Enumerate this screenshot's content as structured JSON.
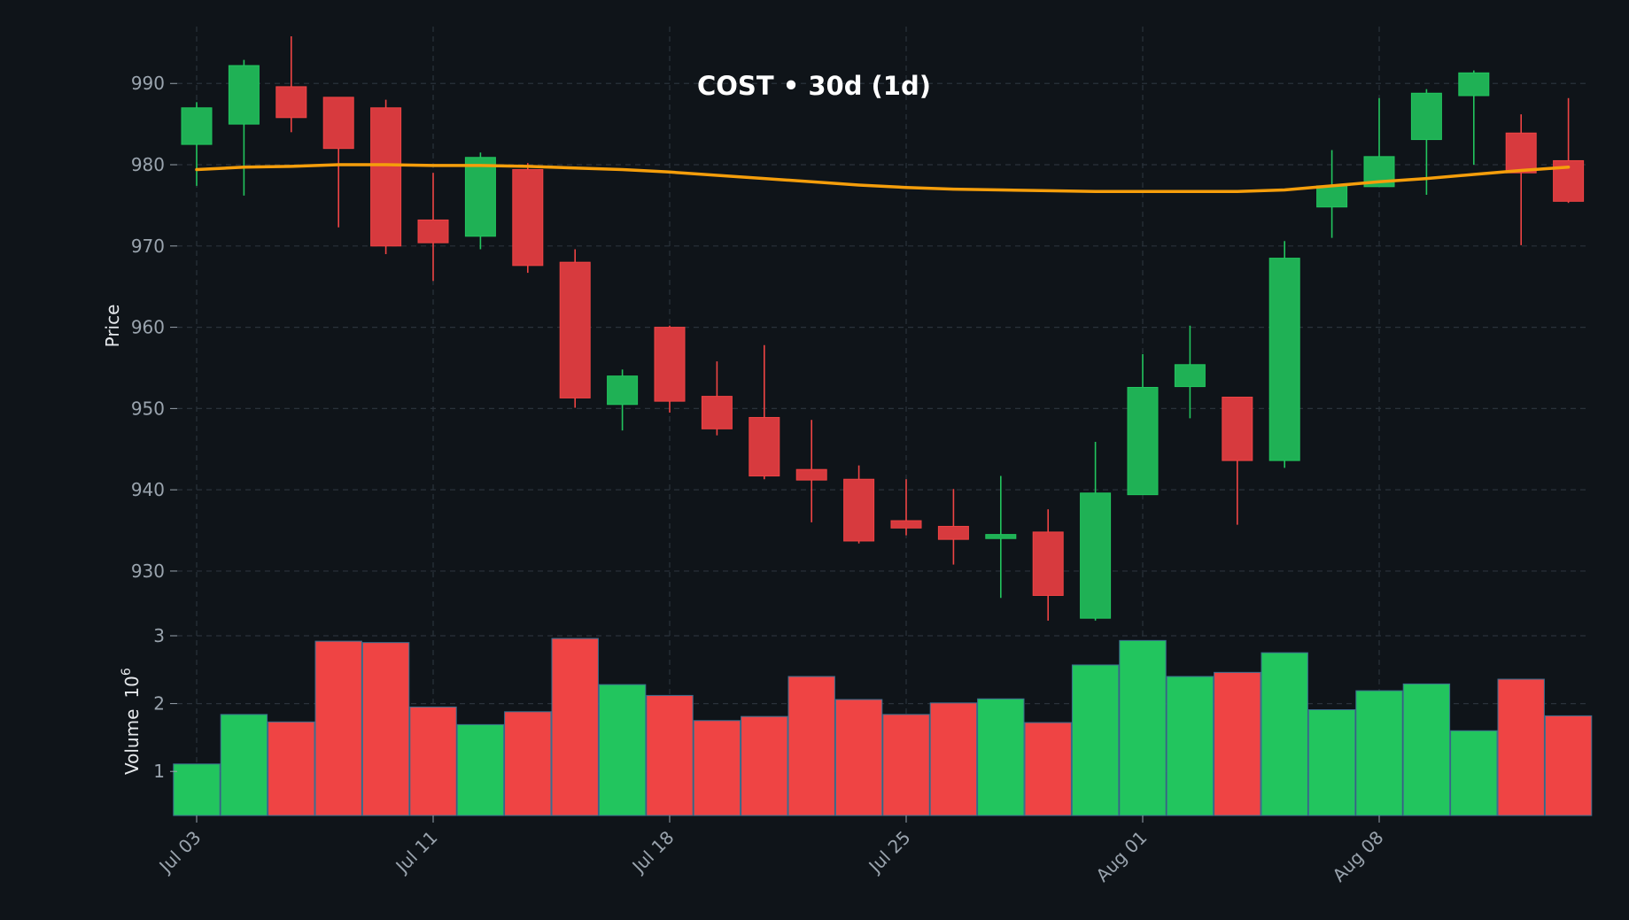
{
  "chart_data": {
    "type": "candlestick",
    "title": "COST • 30d (1d)",
    "ylabel_price": "Price",
    "ylabel_volume": "Volume",
    "volume_multiplier_label": "10",
    "volume_multiplier_exp": "6",
    "price_ylim": [
      924,
      997
    ],
    "price_ticks": [
      930,
      940,
      950,
      960,
      970,
      980,
      990
    ],
    "volume_ylim": [
      0.35,
      3.0
    ],
    "volume_ticks": [
      1,
      2,
      3
    ],
    "xtick_labels": [
      "Jul 03",
      "Jul 11",
      "Jul 18",
      "Jul 25",
      "Aug 01",
      "Aug 08"
    ],
    "xtick_index": [
      0,
      5,
      10,
      15,
      20,
      25
    ],
    "grid": true,
    "colors": {
      "background": "#0f1419",
      "up": "#22c55e",
      "down": "#ef4444",
      "up_candle": "#1fb155",
      "down_candle": "#d73a3e",
      "ma": "#f59e0b",
      "grid": "#2a323b",
      "text": "#9aa4ae",
      "title": "#ffffff"
    },
    "candles": [
      {
        "o": 982.5,
        "h": 987.7,
        "l": 977.4,
        "c": 987.0
      },
      {
        "o": 985.0,
        "h": 992.9,
        "l": 976.2,
        "c": 992.2
      },
      {
        "o": 989.6,
        "h": 995.8,
        "l": 984.0,
        "c": 985.8
      },
      {
        "o": 988.3,
        "h": 988.3,
        "l": 972.3,
        "c": 982.0
      },
      {
        "o": 987.0,
        "h": 988.0,
        "l": 969.0,
        "c": 970.0
      },
      {
        "o": 973.2,
        "h": 979.0,
        "l": 965.7,
        "c": 970.4
      },
      {
        "o": 971.2,
        "h": 981.5,
        "l": 969.6,
        "c": 980.9
      },
      {
        "o": 979.4,
        "h": 980.2,
        "l": 966.7,
        "c": 967.6
      },
      {
        "o": 968.0,
        "h": 969.6,
        "l": 950.1,
        "c": 951.3
      },
      {
        "o": 950.5,
        "h": 954.8,
        "l": 947.3,
        "c": 954.0
      },
      {
        "o": 960.0,
        "h": 960.2,
        "l": 949.5,
        "c": 950.9
      },
      {
        "o": 951.5,
        "h": 955.8,
        "l": 946.7,
        "c": 947.5
      },
      {
        "o": 948.9,
        "h": 957.8,
        "l": 941.3,
        "c": 941.7
      },
      {
        "o": 942.5,
        "h": 948.6,
        "l": 936.0,
        "c": 941.2
      },
      {
        "o": 941.3,
        "h": 943.0,
        "l": 933.4,
        "c": 933.7
      },
      {
        "o": 936.2,
        "h": 941.3,
        "l": 934.4,
        "c": 935.3
      },
      {
        "o": 935.5,
        "h": 940.1,
        "l": 930.8,
        "c": 933.9
      },
      {
        "o": 934.0,
        "h": 941.7,
        "l": 926.7,
        "c": 934.5
      },
      {
        "o": 934.8,
        "h": 937.6,
        "l": 923.9,
        "c": 927.0
      },
      {
        "o": 924.2,
        "h": 945.9,
        "l": 923.9,
        "c": 939.6
      },
      {
        "o": 939.4,
        "h": 956.7,
        "l": 939.4,
        "c": 952.6
      },
      {
        "o": 952.7,
        "h": 960.2,
        "l": 948.8,
        "c": 955.4
      },
      {
        "o": 951.4,
        "h": 951.4,
        "l": 935.7,
        "c": 943.6
      },
      {
        "o": 943.6,
        "h": 970.6,
        "l": 942.7,
        "c": 968.5
      },
      {
        "o": 974.8,
        "h": 981.8,
        "l": 971.0,
        "c": 977.4
      },
      {
        "o": 977.3,
        "h": 988.2,
        "l": 977.3,
        "c": 981.0
      },
      {
        "o": 983.1,
        "h": 989.3,
        "l": 976.3,
        "c": 988.8
      },
      {
        "o": 988.5,
        "h": 991.6,
        "l": 980.0,
        "c": 991.3
      },
      {
        "o": 983.9,
        "h": 986.2,
        "l": 970.1,
        "c": 979.0
      },
      {
        "o": 980.5,
        "h": 988.2,
        "l": 975.3,
        "c": 975.5
      }
    ],
    "ma": [
      979.4,
      979.7,
      979.8,
      980.0,
      980.0,
      979.9,
      979.9,
      979.8,
      979.6,
      979.4,
      979.1,
      978.7,
      978.3,
      977.9,
      977.5,
      977.2,
      977.0,
      976.9,
      976.8,
      976.7,
      976.7,
      976.7,
      976.7,
      976.9,
      977.4,
      977.9,
      978.3,
      978.8,
      979.3,
      979.7
    ],
    "volumes": [
      {
        "v": 1.11,
        "up": true
      },
      {
        "v": 1.84,
        "up": true
      },
      {
        "v": 1.73,
        "up": false
      },
      {
        "v": 2.92,
        "up": false
      },
      {
        "v": 2.9,
        "up": false
      },
      {
        "v": 1.95,
        "up": false
      },
      {
        "v": 1.69,
        "up": true
      },
      {
        "v": 1.88,
        "up": false
      },
      {
        "v": 2.96,
        "up": false
      },
      {
        "v": 2.28,
        "up": true
      },
      {
        "v": 2.12,
        "up": false
      },
      {
        "v": 1.75,
        "up": false
      },
      {
        "v": 1.81,
        "up": false
      },
      {
        "v": 2.4,
        "up": false
      },
      {
        "v": 2.06,
        "up": false
      },
      {
        "v": 1.84,
        "up": false
      },
      {
        "v": 2.01,
        "up": false
      },
      {
        "v": 2.07,
        "up": true
      },
      {
        "v": 1.72,
        "up": false
      },
      {
        "v": 2.57,
        "up": true
      },
      {
        "v": 2.93,
        "up": true
      },
      {
        "v": 2.4,
        "up": true
      },
      {
        "v": 2.46,
        "up": false
      },
      {
        "v": 2.75,
        "up": true
      },
      {
        "v": 1.91,
        "up": true
      },
      {
        "v": 2.19,
        "up": true
      },
      {
        "v": 2.29,
        "up": true
      },
      {
        "v": 1.6,
        "up": true
      },
      {
        "v": 2.36,
        "up": false
      },
      {
        "v": 1.82,
        "up": false
      }
    ]
  }
}
